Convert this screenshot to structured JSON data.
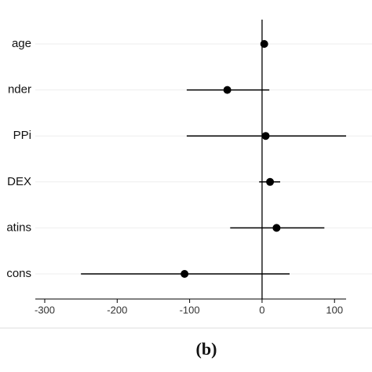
{
  "chart_data": {
    "type": "forest",
    "caption": "(b)",
    "categories": [
      "age",
      "nder",
      "PPi",
      "DEX",
      "atins",
      "cons"
    ],
    "values": [
      3,
      -48,
      5,
      11,
      20,
      -107
    ],
    "lower": [
      1,
      -104,
      -104,
      -4,
      -44,
      -250
    ],
    "upper": [
      5,
      10,
      116,
      25,
      86,
      38
    ],
    "color": "#000000",
    "ref_line": 0,
    "xlim": [
      -313,
      116
    ],
    "xticks": [
      -300,
      -200,
      -100,
      0,
      100
    ],
    "grid": true
  }
}
